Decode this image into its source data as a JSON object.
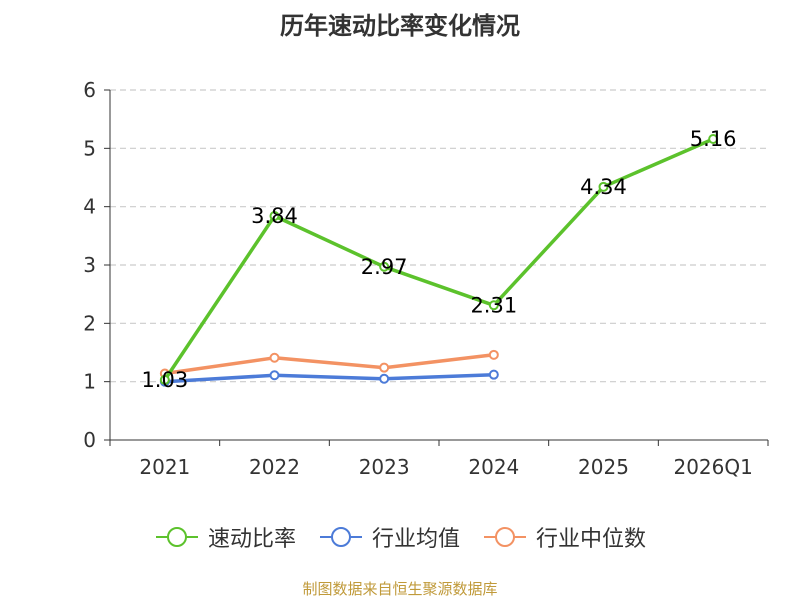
{
  "title": "历年速动比率变化情况",
  "source": "制图数据来自恒生聚源数据库",
  "chart_data": {
    "type": "line",
    "categories": [
      "2021",
      "2022",
      "2023",
      "2024",
      "2025",
      "2026Q1"
    ],
    "yticks": [
      "0",
      "1",
      "2",
      "3",
      "4",
      "5",
      "6"
    ],
    "ylim": [
      0,
      6
    ],
    "grid": true,
    "legend_position": "bottom",
    "series": [
      {
        "name": "速动比率",
        "color": "#5cc22c",
        "values": [
          1.03,
          3.84,
          2.97,
          2.31,
          4.34,
          5.16
        ],
        "labels": [
          "1.03",
          "3.84",
          "2.97",
          "2.31",
          "4.34",
          "5.16"
        ]
      },
      {
        "name": "行业均值",
        "color": "#4c7bd8",
        "values": [
          1.0,
          1.11,
          1.05,
          1.12,
          null,
          null
        ]
      },
      {
        "name": "行业中位数",
        "color": "#f39263",
        "values": [
          1.14,
          1.41,
          1.24,
          1.46,
          null,
          null
        ]
      }
    ]
  }
}
